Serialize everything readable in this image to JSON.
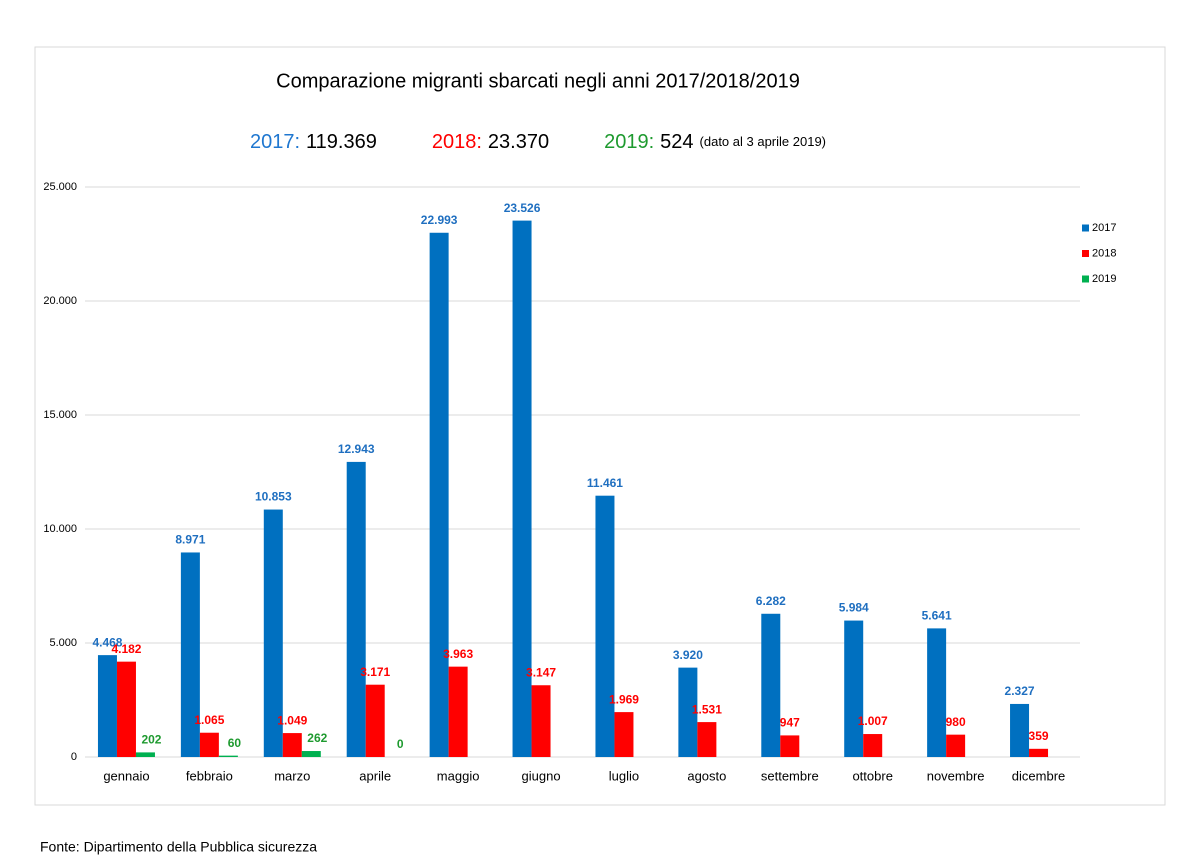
{
  "chart_data": {
    "type": "bar",
    "title": "Comparazione migranti sbarcati negli anni 2017/2018/2019",
    "subtitle": [
      {
        "label": "2017:",
        "total": "119.369",
        "color": "#1f77d0"
      },
      {
        "label": "2018:",
        "total": "23.370",
        "color": "#ff0000"
      },
      {
        "label": "2019:",
        "total": "524",
        "color": "#1e9a2f"
      }
    ],
    "subtitle_note": "(dato al 3 aprile 2019)",
    "categories": [
      "gennaio",
      "febbraio",
      "marzo",
      "aprile",
      "maggio",
      "giugno",
      "luglio",
      "agosto",
      "settembre",
      "ottobre",
      "novembre",
      "dicembre"
    ],
    "series": [
      {
        "name": "2017",
        "color": "#0070c0",
        "values": [
          4468,
          8971,
          10853,
          12943,
          22993,
          23526,
          11461,
          3920,
          6282,
          5984,
          5641,
          2327
        ],
        "value_labels": [
          "4.468",
          "8.971",
          "10.853",
          "12.943",
          "22.993",
          "23.526",
          "11.461",
          "3.920",
          "6.282",
          "5.984",
          "5.641",
          "2.327"
        ]
      },
      {
        "name": "2018",
        "color": "#ff0000",
        "values": [
          4182,
          1065,
          1049,
          3171,
          3963,
          3147,
          1969,
          1531,
          947,
          1007,
          980,
          359
        ],
        "value_labels": [
          "4.182",
          "1.065",
          "1.049",
          "3.171",
          "3.963",
          "3.147",
          "1.969",
          "1.531",
          "947",
          "1.007",
          "980",
          "359"
        ]
      },
      {
        "name": "2019",
        "color": "#00b050",
        "values": [
          202,
          60,
          262,
          0,
          null,
          null,
          null,
          null,
          null,
          null,
          null,
          null
        ]
      }
    ],
    "ylim": [
      0,
      25000
    ],
    "yticks": [
      0,
      {
        "value": 5000,
        "label": "5.000"
      },
      {
        "value": 10000,
        "label": "10.000"
      },
      {
        "value": 15000,
        "label": "15.000"
      },
      {
        "value": 20000,
        "label": "20.000"
      },
      {
        "value": 25000,
        "label": "25.000"
      }
    ],
    "grid": true,
    "legend": "right",
    "source": "Fonte: Dipartimento della Pubblica sicurezza"
  }
}
